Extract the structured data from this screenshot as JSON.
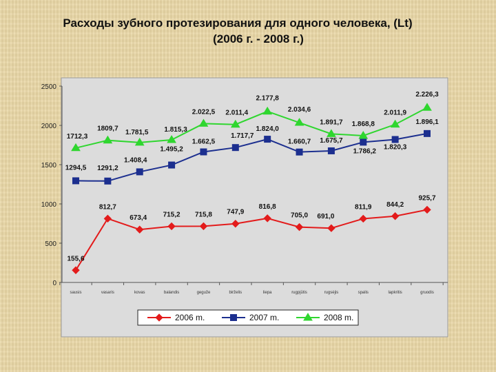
{
  "title_line1": "Расходы зубного протезирования для одного человека,  (Lt)",
  "title_line2": "(2006 г. - 2008 г.)",
  "colors": {
    "plot_bg": "#dcdcdc",
    "series_2006": "#e31b1b",
    "series_2007": "#1c2f8f",
    "series_2008": "#2fd62f"
  },
  "chart_data": {
    "type": "line",
    "title": "",
    "xlabel": "",
    "ylabel": "",
    "ylim": [
      0,
      2500
    ],
    "yticks": [
      0,
      500,
      1000,
      1500,
      2000,
      2500
    ],
    "grid": false,
    "legend_position": "bottom",
    "categories": [
      "sausis",
      "vasaris",
      "kovas",
      "balandis",
      "geguže",
      "birželis",
      "liepa",
      "rugpjūtis",
      "rugsėjis",
      "spalis",
      "lapkritis",
      "gruodis"
    ],
    "series": [
      {
        "name": "2006 m.",
        "marker": "diamond",
        "values": [
          155.6,
          812.7,
          673.4,
          715.2,
          715.8,
          747.9,
          816.8,
          705.0,
          691.0,
          811.9,
          844.2,
          925.7
        ],
        "labels": [
          "155,6",
          "812,7",
          "673,4",
          "715,2",
          "715,8",
          "747,9",
          "816,8",
          "705,0",
          "691,0",
          "811,9",
          "844,2",
          "925,7"
        ]
      },
      {
        "name": "2007 m.",
        "marker": "square",
        "values": [
          1294.5,
          1291.2,
          1408.4,
          1495.2,
          1662.5,
          1717.7,
          1824.0,
          1660.7,
          1675.7,
          1786.2,
          1820.3,
          1896.1
        ],
        "labels": [
          "1294,5",
          "1291,2",
          "1.408,4",
          "1.495,2",
          "1.662,5",
          "1.717,7",
          "1.824,0",
          "1.660,7",
          "1.675,7",
          "1.786,2",
          "1.820,3",
          "1.896,1"
        ]
      },
      {
        "name": "2008 m.",
        "marker": "triangle",
        "values": [
          1712.3,
          1809.7,
          1781.5,
          1815.3,
          2022.5,
          2011.4,
          2177.8,
          2034.6,
          1891.7,
          1868.8,
          2011.9,
          2226.3
        ],
        "labels": [
          "1712,3",
          "1809,7",
          "1.781,5",
          "1.815,3",
          "2.022,5",
          "2.011,4",
          "2.177,8",
          "2.034,6",
          "1.891,7",
          "1.868,8",
          "2.011,9",
          "2.226,3"
        ]
      }
    ]
  }
}
